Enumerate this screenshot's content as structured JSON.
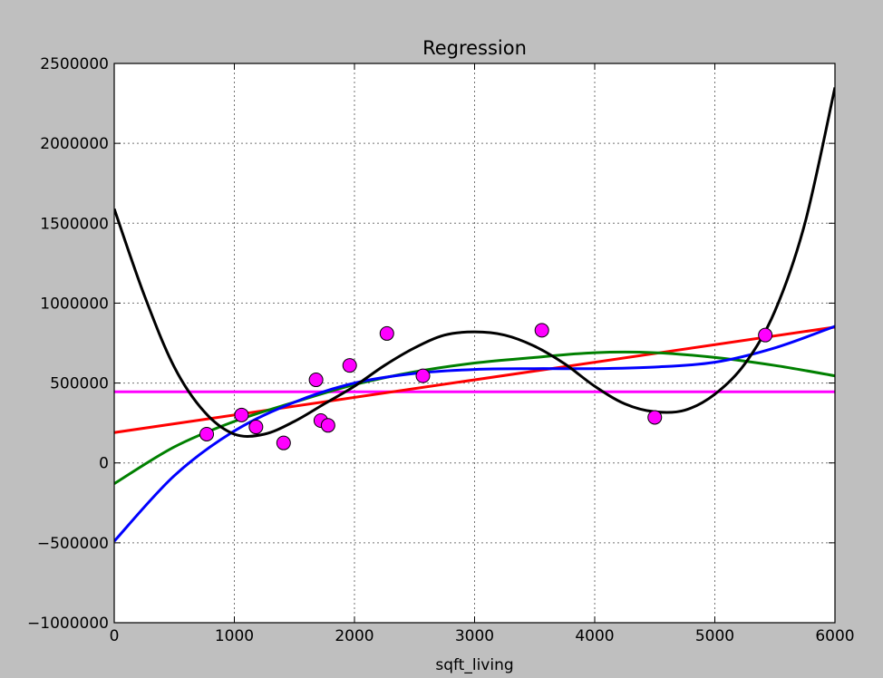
{
  "chart_data": {
    "type": "scatter",
    "title": "Regression",
    "xlabel": "sqft_living",
    "ylabel": "",
    "xlim": [
      0,
      6000
    ],
    "ylim": [
      -1000000,
      2500000
    ],
    "grid": true,
    "x_ticks": [
      0,
      1000,
      2000,
      3000,
      4000,
      5000,
      6000
    ],
    "y_ticks": [
      -1000000,
      -500000,
      0,
      500000,
      1000000,
      1500000,
      2000000,
      2500000
    ],
    "x_tick_labels": [
      "0",
      "1000",
      "2000",
      "3000",
      "4000",
      "5000",
      "6000"
    ],
    "y_tick_labels": [
      "−1000000",
      "−500000",
      "0",
      "500000",
      "1000000",
      "1500000",
      "2000000",
      "2500000"
    ],
    "points": {
      "color": "#ff00ff",
      "x": [
        770,
        1060,
        1180,
        1410,
        1680,
        1720,
        1780,
        1960,
        2270,
        2570,
        3560,
        4500,
        5420
      ],
      "y": [
        180000,
        300000,
        225000,
        125000,
        520000,
        265000,
        235000,
        610000,
        810000,
        545000,
        830000,
        285000,
        800000
      ]
    },
    "series": [
      {
        "color": "#ff00ff",
        "x": [
          0,
          6000
        ],
        "y": [
          445000,
          445000
        ]
      },
      {
        "color": "#ff0000",
        "x": [
          0,
          6000
        ],
        "y": [
          190000,
          850000
        ]
      },
      {
        "color": "#008000",
        "x": [
          0,
          500,
          1000,
          1500,
          2000,
          2500,
          3000,
          3500,
          4000,
          4500,
          5000,
          5500,
          6000
        ],
        "y": [
          -130000,
          100000,
          260000,
          380000,
          490000,
          570000,
          625000,
          660000,
          690000,
          690000,
          660000,
          610000,
          545000
        ]
      },
      {
        "color": "#0000ff",
        "x": [
          0,
          500,
          1000,
          1500,
          2000,
          2500,
          3000,
          3500,
          4000,
          4500,
          5000,
          5500,
          6000
        ],
        "y": [
          -490000,
          -80000,
          200000,
          380000,
          500000,
          560000,
          585000,
          590000,
          590000,
          600000,
          630000,
          720000,
          855000
        ]
      },
      {
        "color": "#000000",
        "x": [
          0,
          250,
          500,
          750,
          1000,
          1250,
          1500,
          1750,
          2000,
          2250,
          2500,
          2750,
          3000,
          3250,
          3500,
          3750,
          4000,
          4250,
          4500,
          4750,
          5000,
          5250,
          5500,
          5750,
          6000
        ],
        "y": [
          1590000,
          1050000,
          600000,
          320000,
          180000,
          180000,
          260000,
          370000,
          480000,
          610000,
          720000,
          800000,
          820000,
          800000,
          730000,
          620000,
          480000,
          370000,
          320000,
          330000,
          430000,
          620000,
          950000,
          1500000,
          2350000
        ]
      }
    ]
  }
}
